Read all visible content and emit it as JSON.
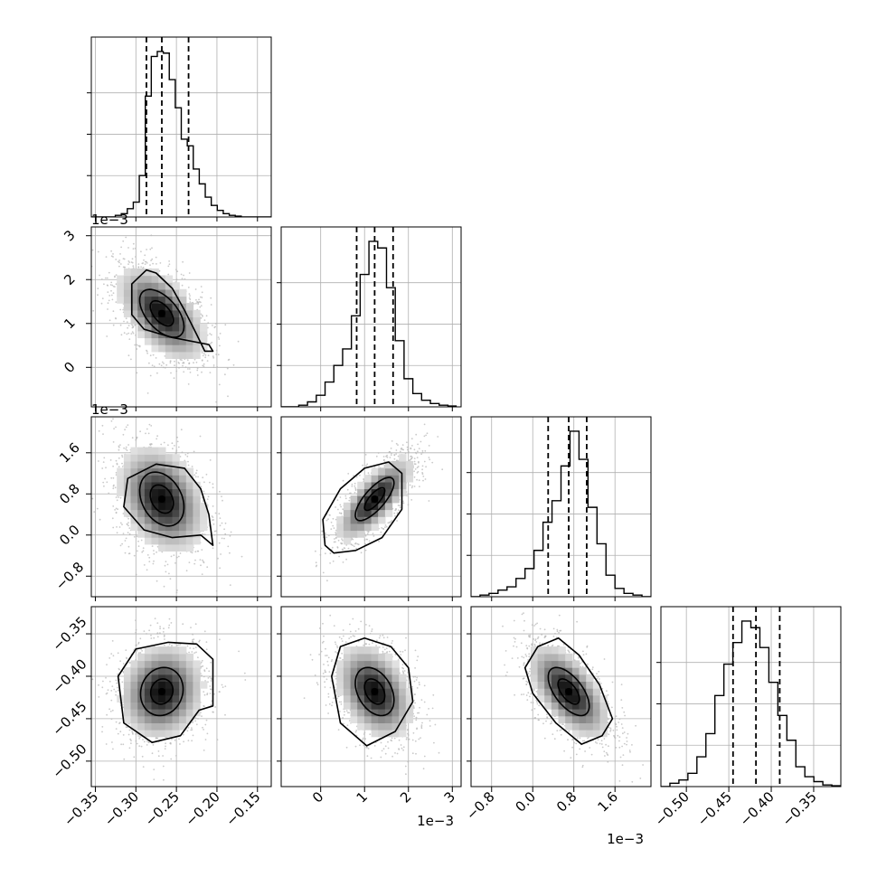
{
  "colors": {
    "ink": "#000000",
    "grid": "#b0b0b0",
    "scatter": "#b8b8b8",
    "background": "#ffffff"
  },
  "chart_data": {
    "type": "corner",
    "grid": true,
    "params": [
      {
        "id": "p0",
        "range": [
          -0.355,
          -0.133
        ],
        "ticks": [
          -0.35,
          -0.3,
          -0.25,
          -0.2,
          -0.15
        ],
        "tick_labels": [
          "−0.35",
          "−0.30",
          "−0.25",
          "−0.20",
          "−0.15"
        ],
        "offset": "",
        "quantiles": [
          -0.287,
          -0.268,
          -0.235
        ],
        "center": -0.268
      },
      {
        "id": "p1",
        "range": [
          -0.9,
          3.2
        ],
        "ticks": [
          0,
          1,
          2,
          3
        ],
        "tick_labels": [
          "0",
          "1",
          "2",
          "3"
        ],
        "offset": "1e−3",
        "quantiles": [
          0.82,
          1.23,
          1.65
        ],
        "center": 1.23
      },
      {
        "id": "p2",
        "range": [
          -1.2,
          2.3
        ],
        "ticks": [
          -0.8,
          0.0,
          0.8,
          1.6
        ],
        "tick_labels": [
          "−0.8",
          "0.0",
          "0.8",
          "1.6"
        ],
        "offset": "1e−3",
        "quantiles": [
          0.3,
          0.7,
          1.05
        ],
        "center": 0.7
      },
      {
        "id": "p3",
        "range": [
          -0.53,
          -0.318
        ],
        "ticks": [
          -0.5,
          -0.45,
          -0.4,
          -0.35
        ],
        "tick_labels": [
          "−0.50",
          "−0.45",
          "−0.40",
          "−0.35"
        ],
        "offset": "",
        "quantiles": [
          -0.445,
          -0.418,
          -0.39
        ],
        "center": -0.418
      }
    ],
    "histograms": [
      {
        "param": "p0",
        "edges": [
          -0.355,
          -0.3476,
          -0.3402,
          -0.3328,
          -0.3254,
          -0.318,
          -0.3106,
          -0.3032,
          -0.2958,
          -0.2884,
          -0.281,
          -0.2736,
          -0.2662,
          -0.2588,
          -0.2514,
          -0.244,
          -0.2366,
          -0.2292,
          -0.2218,
          -0.2144,
          -0.207,
          -0.1996,
          -0.1922,
          -0.1848,
          -0.1774,
          -0.17,
          -0.1626,
          -0.1552,
          -0.1478,
          -0.1404,
          -0.133
        ],
        "counts": [
          0,
          0,
          0,
          0,
          0.01,
          0.02,
          0.05,
          0.09,
          0.25,
          0.73,
          0.97,
          1.0,
          0.99,
          0.83,
          0.66,
          0.47,
          0.43,
          0.29,
          0.2,
          0.12,
          0.07,
          0.04,
          0.02,
          0.01,
          0.005,
          0,
          0,
          0,
          0,
          0
        ]
      },
      {
        "param": "p1",
        "edges": [
          -0.9,
          -0.7,
          -0.5,
          -0.3,
          -0.1,
          0.1,
          0.3,
          0.5,
          0.7,
          0.9,
          1.1,
          1.3,
          1.5,
          1.7,
          1.9,
          2.1,
          2.3,
          2.5,
          2.7,
          2.9,
          3.1
        ],
        "counts": [
          0,
          0,
          0.01,
          0.03,
          0.07,
          0.15,
          0.25,
          0.35,
          0.55,
          0.8,
          1.0,
          0.96,
          0.72,
          0.4,
          0.17,
          0.08,
          0.04,
          0.02,
          0.01,
          0.005
        ]
      },
      {
        "param": "p2",
        "edges": [
          -1.2,
          -1.025,
          -0.85,
          -0.675,
          -0.5,
          -0.325,
          -0.15,
          0.025,
          0.2,
          0.375,
          0.55,
          0.725,
          0.9,
          1.075,
          1.25,
          1.425,
          1.6,
          1.775,
          1.95,
          2.125,
          2.3
        ],
        "counts": [
          0,
          0.01,
          0.02,
          0.04,
          0.06,
          0.11,
          0.17,
          0.28,
          0.45,
          0.58,
          0.79,
          1.0,
          0.83,
          0.54,
          0.32,
          0.13,
          0.05,
          0.02,
          0.01,
          0
        ]
      },
      {
        "param": "p3",
        "edges": [
          -0.53,
          -0.5194,
          -0.5088,
          -0.4982,
          -0.4876,
          -0.477,
          -0.4664,
          -0.4558,
          -0.4452,
          -0.4346,
          -0.424,
          -0.4134,
          -0.4028,
          -0.3922,
          -0.3816,
          -0.371,
          -0.3604,
          -0.3498,
          -0.3392,
          -0.3286,
          -0.318
        ],
        "counts": [
          0,
          0.02,
          0.04,
          0.08,
          0.18,
          0.32,
          0.55,
          0.74,
          0.87,
          1.0,
          0.96,
          0.84,
          0.63,
          0.43,
          0.28,
          0.12,
          0.06,
          0.03,
          0.01,
          0.005
        ]
      }
    ],
    "pairs": [
      {
        "x": "p0",
        "y": "p1",
        "rho": -0.55,
        "sx": 0.026,
        "sy": 0.52,
        "contours": [
          0.45,
          0.9,
          1.35
        ],
        "outer_contour": [
          [
            -0.287,
            2.22
          ],
          [
            -0.305,
            1.9
          ],
          [
            -0.305,
            1.2
          ],
          [
            -0.29,
            0.87
          ],
          [
            -0.255,
            0.68
          ],
          [
            -0.21,
            0.52
          ],
          [
            -0.205,
            0.37
          ],
          [
            -0.215,
            0.37
          ],
          [
            -0.225,
            0.75
          ],
          [
            -0.24,
            1.3
          ],
          [
            -0.255,
            1.8
          ],
          [
            -0.275,
            2.15
          ]
        ]
      },
      {
        "x": "p0",
        "y": "p2",
        "rho": -0.3,
        "sx": 0.026,
        "sy": 0.5,
        "contours": [
          0.45,
          0.9,
          1.35
        ],
        "outer_contour": [
          [
            -0.275,
            1.38
          ],
          [
            -0.31,
            1.1
          ],
          [
            -0.315,
            0.55
          ],
          [
            -0.29,
            0.1
          ],
          [
            -0.255,
            -0.05
          ],
          [
            -0.22,
            0.0
          ],
          [
            -0.205,
            -0.2
          ],
          [
            -0.21,
            0.4
          ],
          [
            -0.22,
            0.9
          ],
          [
            -0.24,
            1.3
          ]
        ]
      },
      {
        "x": "p1",
        "y": "p2",
        "rho": 0.75,
        "sx": 0.42,
        "sy": 0.4,
        "contours": [
          0.45,
          0.9,
          1.35
        ],
        "outer_contour": [
          [
            0.1,
            -0.2
          ],
          [
            0.05,
            0.3
          ],
          [
            0.45,
            0.9
          ],
          [
            1.0,
            1.3
          ],
          [
            1.55,
            1.42
          ],
          [
            1.85,
            1.2
          ],
          [
            1.85,
            0.5
          ],
          [
            1.4,
            -0.05
          ],
          [
            0.8,
            -0.3
          ],
          [
            0.3,
            -0.35
          ]
        ]
      },
      {
        "x": "p0",
        "y": "p3",
        "rho": 0.1,
        "sx": 0.025,
        "sy": 0.027,
        "contours": [
          0.45,
          0.9,
          1.35
        ],
        "outer_contour": [
          [
            -0.3,
            -0.368
          ],
          [
            -0.322,
            -0.4
          ],
          [
            -0.315,
            -0.455
          ],
          [
            -0.28,
            -0.478
          ],
          [
            -0.245,
            -0.47
          ],
          [
            -0.222,
            -0.44
          ],
          [
            -0.205,
            -0.435
          ],
          [
            -0.205,
            -0.38
          ],
          [
            -0.225,
            -0.362
          ],
          [
            -0.26,
            -0.36
          ]
        ]
      },
      {
        "x": "p1",
        "y": "p3",
        "rho": -0.35,
        "sx": 0.42,
        "sy": 0.027,
        "contours": [
          0.45,
          0.9,
          1.35
        ],
        "outer_contour": [
          [
            0.45,
            -0.365
          ],
          [
            0.25,
            -0.4
          ],
          [
            0.45,
            -0.455
          ],
          [
            1.05,
            -0.482
          ],
          [
            1.7,
            -0.465
          ],
          [
            2.1,
            -0.43
          ],
          [
            2.0,
            -0.39
          ],
          [
            1.6,
            -0.365
          ],
          [
            1.0,
            -0.355
          ]
        ]
      },
      {
        "x": "p2",
        "y": "p3",
        "rho": -0.6,
        "sx": 0.38,
        "sy": 0.027,
        "contours": [
          0.45,
          0.9,
          1.35
        ],
        "outer_contour": [
          [
            0.1,
            -0.365
          ],
          [
            -0.15,
            -0.39
          ],
          [
            0.0,
            -0.42
          ],
          [
            0.45,
            -0.455
          ],
          [
            0.95,
            -0.48
          ],
          [
            1.35,
            -0.47
          ],
          [
            1.55,
            -0.45
          ],
          [
            1.3,
            -0.41
          ],
          [
            0.9,
            -0.375
          ],
          [
            0.5,
            -0.355
          ]
        ]
      }
    ]
  }
}
